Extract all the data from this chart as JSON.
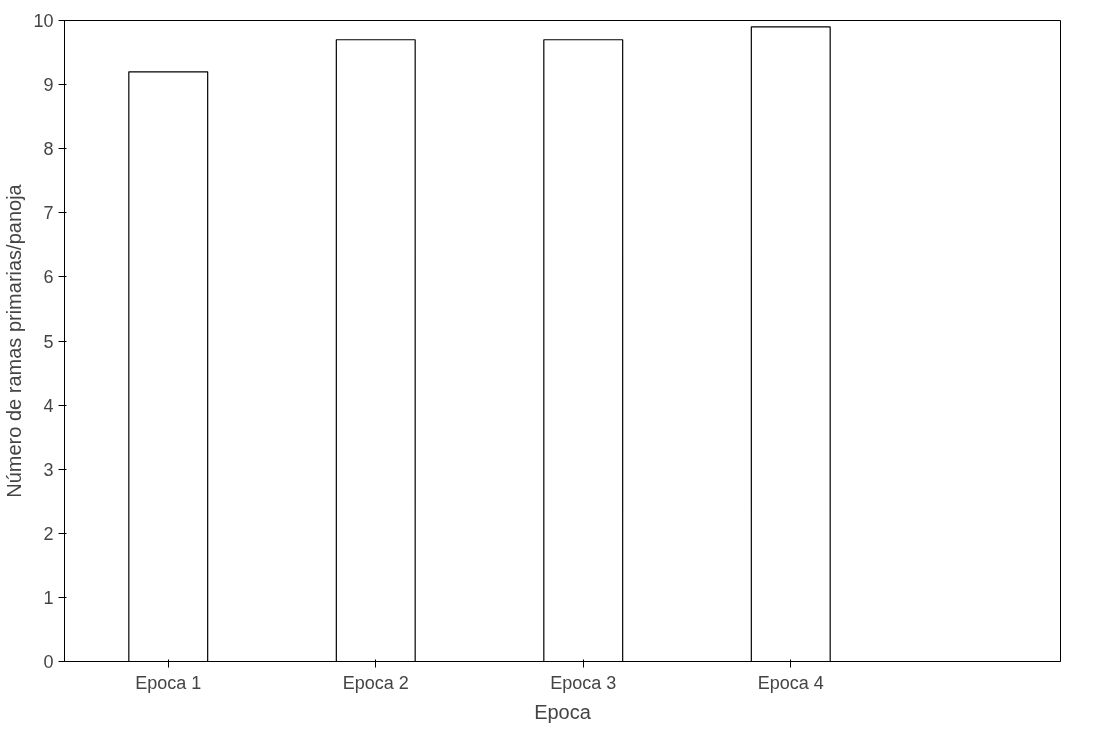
{
  "chart_data": {
    "type": "bar",
    "xlabel": "Epoca",
    "ylabel": "Número de ramas primarias/panoja",
    "categories": [
      "Epoca 1",
      "Epoca 2",
      "Epoca 3",
      "Epoca 4"
    ],
    "values": [
      9.2,
      9.7,
      9.7,
      9.9
    ],
    "color": "#ffffff",
    "ylim": [
      0,
      10
    ],
    "yticks": [
      0,
      1,
      2,
      3,
      4,
      5,
      6,
      7,
      8,
      9,
      10
    ],
    "grid": false
  }
}
